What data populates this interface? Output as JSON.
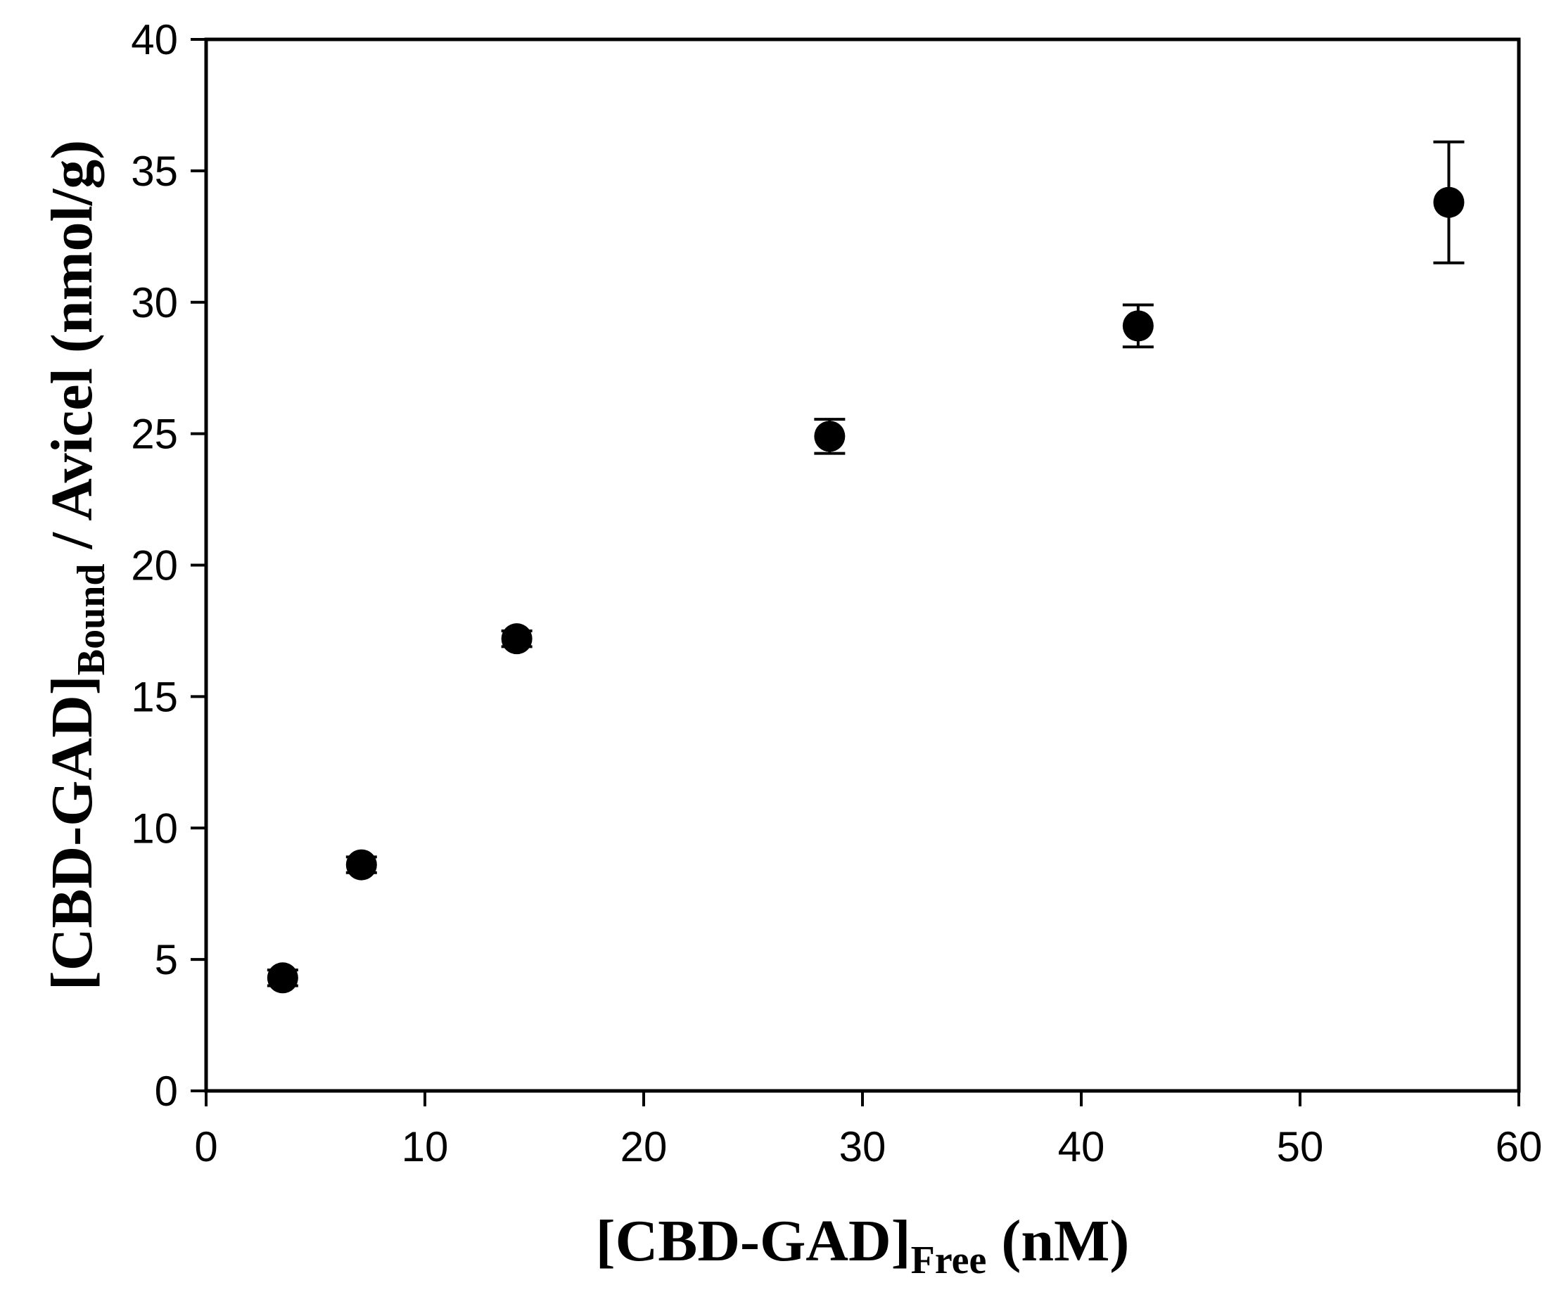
{
  "chart_data": {
    "type": "scatter",
    "xlabel": {
      "main": "[CBD-GAD]",
      "sub": "Free",
      "unit": " (nM)"
    },
    "ylabel": {
      "main": "[CBD-GAD]",
      "sub": "Bound",
      "unit": "  / Avicel (nmol/g)"
    },
    "xlim": [
      0,
      60
    ],
    "ylim": [
      0,
      40
    ],
    "xticks": [
      0,
      10,
      20,
      30,
      40,
      50,
      60
    ],
    "yticks": [
      0,
      5,
      10,
      15,
      20,
      25,
      30,
      35,
      40
    ],
    "grid": false,
    "legend": "none",
    "marker_color": "#000000",
    "series": [
      {
        "points": [
          {
            "x": 3.5,
            "y": 4.3,
            "err": 0.3
          },
          {
            "x": 7.1,
            "y": 8.6,
            "err": 0.3
          },
          {
            "x": 14.2,
            "y": 17.2,
            "err": 0.3
          },
          {
            "x": 28.5,
            "y": 24.9,
            "err": 0.65
          },
          {
            "x": 42.6,
            "y": 29.1,
            "err": 0.8
          },
          {
            "x": 56.8,
            "y": 33.8,
            "err": 2.3
          }
        ]
      }
    ]
  }
}
